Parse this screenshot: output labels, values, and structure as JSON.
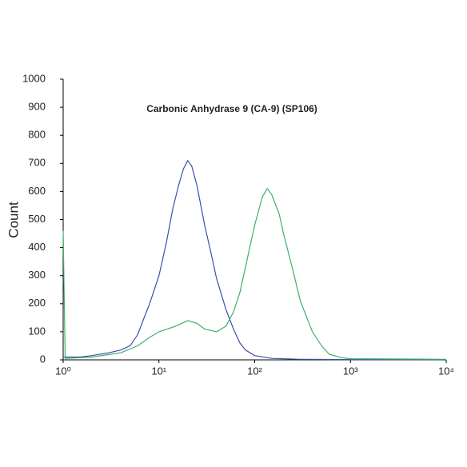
{
  "chart_data": {
    "type": "line",
    "title": "Carbonic Anhydrase 9 (CA-9)  (SP106)",
    "y_label": "Count",
    "xscale": "log",
    "xlim": [
      1,
      10000
    ],
    "xticks": [
      {
        "value": 1,
        "label": "10⁰"
      },
      {
        "value": 10,
        "label": "10¹"
      },
      {
        "value": 100,
        "label": "10²"
      },
      {
        "value": 1000,
        "label": "10³"
      },
      {
        "value": 10000,
        "label": "10⁴"
      }
    ],
    "ylim": [
      0,
      1000
    ],
    "yticks": [
      0,
      100,
      200,
      300,
      400,
      500,
      600,
      700,
      800,
      900,
      1000
    ],
    "grid": false,
    "series": [
      {
        "color": "#3b4fa8",
        "x": [
          1,
          1.5,
          2,
          3,
          4,
          5,
          6,
          7,
          8,
          10,
          12,
          14,
          16,
          18,
          20,
          22,
          25,
          30,
          35,
          40,
          50,
          60,
          70,
          80,
          100,
          150,
          300,
          1000,
          10000
        ],
        "values": [
          10,
          10,
          15,
          25,
          35,
          50,
          90,
          150,
          200,
          300,
          420,
          540,
          620,
          680,
          710,
          690,
          620,
          480,
          380,
          290,
          180,
          110,
          60,
          35,
          15,
          5,
          2,
          1,
          1
        ]
      },
      {
        "color": "#3fae6a",
        "x": [
          1,
          1.05,
          2,
          4,
          6,
          8,
          10,
          15,
          20,
          25,
          30,
          40,
          50,
          60,
          70,
          80,
          100,
          120,
          135,
          150,
          180,
          200,
          250,
          300,
          400,
          500,
          600,
          800,
          1000,
          10000
        ],
        "values": [
          460,
          5,
          10,
          25,
          50,
          80,
          100,
          120,
          140,
          130,
          110,
          100,
          120,
          170,
          240,
          330,
          480,
          580,
          610,
          590,
          520,
          450,
          320,
          210,
          100,
          50,
          20,
          8,
          4,
          2
        ]
      }
    ]
  }
}
